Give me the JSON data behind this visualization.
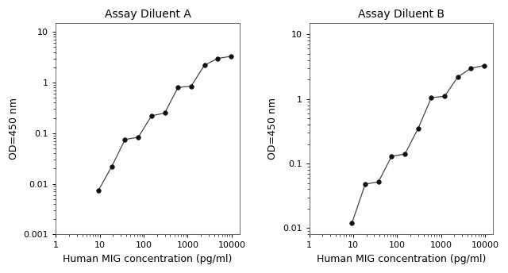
{
  "chart_A": {
    "title": "Assay Diluent A",
    "x": [
      9.375,
      18.75,
      37.5,
      75,
      150,
      300,
      600,
      1200,
      2400,
      4800,
      9600
    ],
    "y": [
      0.0075,
      0.022,
      0.075,
      0.083,
      0.22,
      0.25,
      0.8,
      0.85,
      2.2,
      3.0,
      3.3
    ],
    "xlim": [
      1,
      15000
    ],
    "ylim": [
      0.001,
      15
    ],
    "xlabel": "Human MIG concentration (pg/ml)",
    "ylabel": "OD=450 nm",
    "yticks": [
      0.001,
      0.01,
      0.1,
      1,
      10
    ],
    "xticks": [
      1,
      10,
      100,
      1000,
      10000
    ]
  },
  "chart_B": {
    "title": "Assay Diluent B",
    "x": [
      9.375,
      18.75,
      37.5,
      75,
      150,
      300,
      600,
      1200,
      2400,
      4800,
      9600
    ],
    "y": [
      0.012,
      0.048,
      0.052,
      0.13,
      0.14,
      0.35,
      1.05,
      1.1,
      2.2,
      3.0,
      3.3
    ],
    "xlim": [
      1,
      15000
    ],
    "ylim": [
      0.008,
      15
    ],
    "xlabel": "Human MIG concentration (pg/ml)",
    "ylabel": "OD=450 nm",
    "yticks": [
      0.01,
      0.1,
      1,
      10
    ],
    "xticks": [
      1,
      10,
      100,
      1000,
      10000
    ]
  },
  "line_color": "#444444",
  "marker": "o",
  "marker_color": "#111111",
  "marker_size": 4,
  "bg_color": "#ffffff",
  "title_fontsize": 10,
  "label_fontsize": 9,
  "tick_fontsize": 8
}
